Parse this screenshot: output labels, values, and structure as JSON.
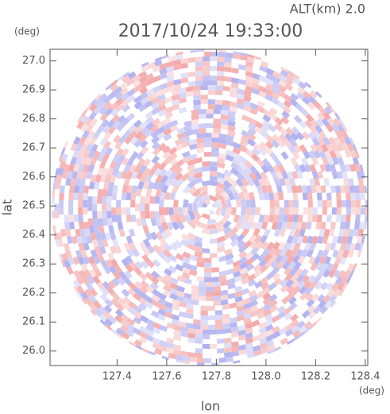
{
  "chart_data": {
    "type": "radar",
    "title": "2017/10/24 19:33:00",
    "subtitle": "ALT(km) 2.0",
    "x_label": "lon",
    "y_label": "lat",
    "x_unit": "(deg)",
    "y_unit": "(deg)",
    "xlim": [
      127.13,
      128.41
    ],
    "ylim": [
      25.95,
      27.04
    ],
    "xticks": [
      127.4,
      127.6,
      127.8,
      {
        "value": 128.0,
        "label": "128.0"
      },
      128.2,
      128.4
    ],
    "yticks": [
      {
        "value": 26.0,
        "label": "26.0"
      },
      26.1,
      26.2,
      26.3,
      26.4,
      26.5,
      26.6,
      26.7,
      26.8,
      26.9,
      {
        "value": 27.0,
        "label": "27.0"
      }
    ]
  }
}
